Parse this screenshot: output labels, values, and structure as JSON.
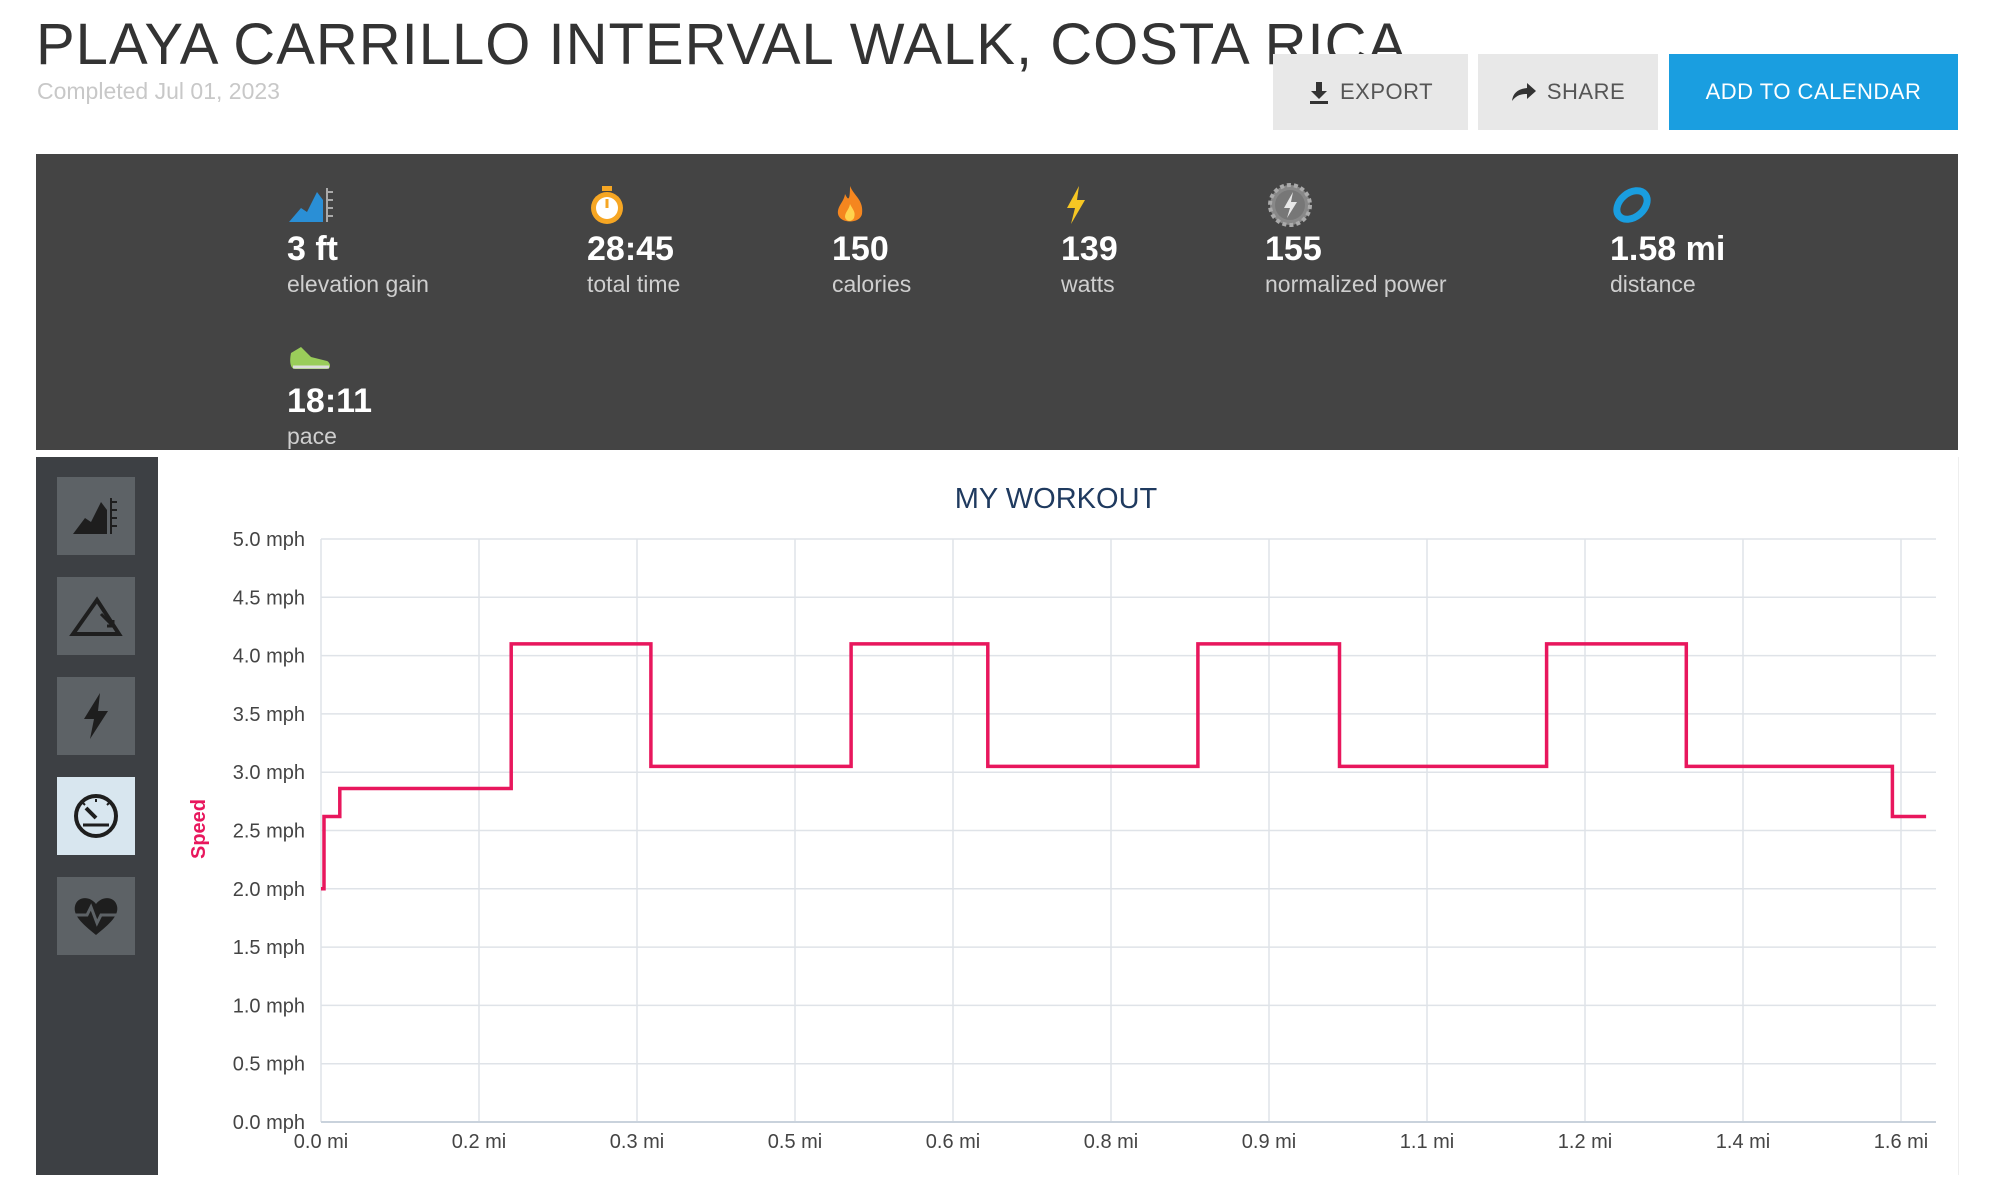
{
  "header": {
    "title": "PLAYA CARRILLO INTERVAL WALK, COSTA RICA",
    "completed": "Completed Jul 01, 2023",
    "export_label": "EXPORT",
    "share_label": "SHARE",
    "calendar_label": "ADD TO CALENDAR"
  },
  "stats": [
    {
      "icon": "elevation-icon",
      "value": "3 ft",
      "label": "elevation gain"
    },
    {
      "icon": "stopwatch-icon",
      "value": "28:45",
      "label": "total time"
    },
    {
      "icon": "flame-icon",
      "value": "150",
      "label": "calories"
    },
    {
      "icon": "lightning-icon",
      "value": "139",
      "label": "watts"
    },
    {
      "icon": "gear-lightning-icon",
      "value": "155",
      "label": "normalized power"
    },
    {
      "icon": "distance-icon",
      "value": "1.58 mi",
      "label": "distance"
    },
    {
      "icon": "shoe-icon",
      "value": "18:11",
      "label": "pace"
    }
  ],
  "sidebar": {
    "items": [
      {
        "icon": "elevation-icon",
        "active": false
      },
      {
        "icon": "incline-icon",
        "active": false
      },
      {
        "icon": "lightning-icon",
        "active": false
      },
      {
        "icon": "speedometer-icon",
        "active": true
      },
      {
        "icon": "heart-rate-icon",
        "active": false
      }
    ]
  },
  "colors": {
    "accent": "#1a9ee0",
    "series": "#e8175d",
    "stats_bg": "#444444",
    "sidebar_bg": "#3d4044",
    "title_color": "#1f3a5f"
  },
  "chart_data": {
    "type": "line",
    "title": "MY WORKOUT",
    "ylabel": "Speed",
    "xlabel": "",
    "ylim": [
      0,
      5
    ],
    "xlim": [
      0,
      1.63
    ],
    "grid": true,
    "y_ticks": [
      "0.0 mph",
      "0.5 mph",
      "1.0 mph",
      "1.5 mph",
      "2.0 mph",
      "2.5 mph",
      "3.0 mph",
      "3.5 mph",
      "4.0 mph",
      "4.5 mph",
      "5.0 mph"
    ],
    "x_ticks": [
      "0.0 mi",
      "0.2 mi",
      "0.3 mi",
      "0.5 mi",
      "0.6 mi",
      "0.8 mi",
      "0.9 mi",
      "1.1 mi",
      "1.2 mi",
      "1.4 mi",
      "1.6 mi"
    ],
    "series": [
      {
        "x": [
          0.0,
          0.003,
          0.003,
          0.019,
          0.019,
          0.192,
          0.192,
          0.333,
          0.333,
          0.535,
          0.535,
          0.673,
          0.673,
          0.885,
          0.885,
          1.028,
          1.028,
          1.237,
          1.237,
          1.378,
          1.378,
          1.586,
          1.586,
          1.62
        ],
        "y": [
          2.0,
          2.0,
          2.62,
          2.62,
          2.86,
          2.86,
          4.1,
          4.1,
          3.05,
          3.05,
          4.1,
          4.1,
          3.05,
          3.05,
          4.1,
          4.1,
          3.05,
          3.05,
          4.1,
          4.1,
          3.05,
          3.05,
          2.62,
          2.62
        ]
      }
    ]
  }
}
